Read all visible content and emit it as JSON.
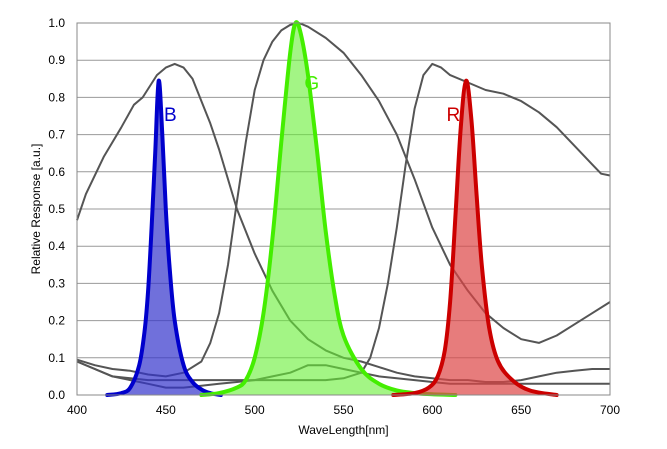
{
  "chart_data": {
    "type": "area",
    "xlabel": "WaveLength[nm]",
    "ylabel": "Relative Response [a.u.]",
    "xlim": [
      400,
      700
    ],
    "ylim": [
      0,
      1.0
    ],
    "x_ticks": [
      "400",
      "450",
      "500",
      "550",
      "600",
      "650",
      "700"
    ],
    "y_ticks": [
      "0.0",
      "0.1",
      "0.2",
      "0.3",
      "0.4",
      "0.5",
      "0.6",
      "0.7",
      "0.8",
      "0.9",
      "1.0"
    ],
    "grid": "horizontal",
    "emission_series": [
      {
        "label": "B",
        "line_color": "#0000cc",
        "fill_color": "#3333cc",
        "fill_opacity": 0.7,
        "label_position": [
          449,
          0.755
        ],
        "points": [
          [
            417,
            0.0
          ],
          [
            425,
            0.005
          ],
          [
            430,
            0.02
          ],
          [
            435,
            0.08
          ],
          [
            438,
            0.17
          ],
          [
            440,
            0.28
          ],
          [
            442,
            0.45
          ],
          [
            444,
            0.65
          ],
          [
            446,
            0.845
          ],
          [
            448,
            0.7
          ],
          [
            450,
            0.5
          ],
          [
            452,
            0.35
          ],
          [
            455,
            0.2
          ],
          [
            460,
            0.08
          ],
          [
            465,
            0.035
          ],
          [
            470,
            0.015
          ],
          [
            475,
            0.005
          ],
          [
            481,
            0.0
          ]
        ]
      },
      {
        "label": "G",
        "line_color": "#44ee00",
        "fill_color": "#66ee33",
        "fill_opacity": 0.6,
        "label_position": [
          528,
          0.84
        ],
        "points": [
          [
            470,
            0.0
          ],
          [
            480,
            0.005
          ],
          [
            490,
            0.02
          ],
          [
            495,
            0.04
          ],
          [
            500,
            0.1
          ],
          [
            505,
            0.22
          ],
          [
            510,
            0.42
          ],
          [
            515,
            0.68
          ],
          [
            520,
            0.92
          ],
          [
            523,
            1.0
          ],
          [
            526,
            0.97
          ],
          [
            530,
            0.86
          ],
          [
            535,
            0.66
          ],
          [
            540,
            0.44
          ],
          [
            545,
            0.27
          ],
          [
            550,
            0.16
          ],
          [
            560,
            0.07
          ],
          [
            570,
            0.03
          ],
          [
            580,
            0.012
          ],
          [
            590,
            0.005
          ],
          [
            600,
            0.002
          ],
          [
            613,
            0.0
          ]
        ]
      },
      {
        "label": "R",
        "line_color": "#cc0000",
        "fill_color": "#dd4444",
        "fill_opacity": 0.7,
        "label_position": [
          608,
          0.755
        ],
        "points": [
          [
            578,
            0.0
          ],
          [
            590,
            0.005
          ],
          [
            598,
            0.02
          ],
          [
            603,
            0.05
          ],
          [
            607,
            0.12
          ],
          [
            610,
            0.25
          ],
          [
            613,
            0.48
          ],
          [
            616,
            0.72
          ],
          [
            619,
            0.845
          ],
          [
            622,
            0.74
          ],
          [
            625,
            0.53
          ],
          [
            628,
            0.34
          ],
          [
            632,
            0.18
          ],
          [
            637,
            0.09
          ],
          [
            645,
            0.04
          ],
          [
            655,
            0.012
          ],
          [
            670,
            0.0
          ]
        ]
      }
    ],
    "filter_series": [
      {
        "color": "#555555",
        "points": [
          [
            400,
            0.47
          ],
          [
            405,
            0.54
          ],
          [
            415,
            0.64
          ],
          [
            425,
            0.72
          ],
          [
            432,
            0.78
          ],
          [
            437,
            0.8
          ],
          [
            445,
            0.86
          ],
          [
            450,
            0.88
          ],
          [
            455,
            0.89
          ],
          [
            460,
            0.88
          ],
          [
            465,
            0.85
          ],
          [
            470,
            0.79
          ],
          [
            475,
            0.73
          ],
          [
            480,
            0.66
          ],
          [
            485,
            0.58
          ],
          [
            490,
            0.5
          ],
          [
            500,
            0.38
          ],
          [
            510,
            0.28
          ],
          [
            520,
            0.2
          ],
          [
            530,
            0.15
          ],
          [
            540,
            0.12
          ],
          [
            550,
            0.1
          ],
          [
            560,
            0.09
          ],
          [
            570,
            0.075
          ],
          [
            580,
            0.06
          ],
          [
            590,
            0.05
          ],
          [
            600,
            0.045
          ],
          [
            610,
            0.04
          ],
          [
            620,
            0.04
          ],
          [
            630,
            0.035
          ],
          [
            640,
            0.035
          ],
          [
            650,
            0.04
          ],
          [
            660,
            0.05
          ],
          [
            670,
            0.06
          ],
          [
            680,
            0.065
          ],
          [
            690,
            0.07
          ],
          [
            700,
            0.07
          ]
        ]
      },
      {
        "color": "#555555",
        "points": [
          [
            400,
            0.09
          ],
          [
            410,
            0.07
          ],
          [
            420,
            0.05
          ],
          [
            430,
            0.04
          ],
          [
            440,
            0.03
          ],
          [
            450,
            0.02
          ],
          [
            460,
            0.02
          ],
          [
            470,
            0.025
          ],
          [
            480,
            0.03
          ],
          [
            490,
            0.035
          ],
          [
            500,
            0.04
          ],
          [
            510,
            0.05
          ],
          [
            520,
            0.06
          ],
          [
            525,
            0.07
          ],
          [
            530,
            0.08
          ],
          [
            540,
            0.08
          ],
          [
            550,
            0.07
          ],
          [
            560,
            0.06
          ],
          [
            570,
            0.05
          ],
          [
            580,
            0.045
          ],
          [
            590,
            0.04
          ],
          [
            600,
            0.035
          ],
          [
            610,
            0.03
          ],
          [
            620,
            0.03
          ],
          [
            630,
            0.03
          ],
          [
            640,
            0.03
          ],
          [
            650,
            0.03
          ],
          [
            660,
            0.03
          ],
          [
            670,
            0.03
          ],
          [
            680,
            0.03
          ],
          [
            690,
            0.03
          ],
          [
            700,
            0.03
          ]
        ]
      },
      {
        "color": "#555555",
        "points": [
          [
            400,
            0.095
          ],
          [
            410,
            0.08
          ],
          [
            420,
            0.07
          ],
          [
            430,
            0.065
          ],
          [
            440,
            0.055
          ],
          [
            450,
            0.05
          ],
          [
            460,
            0.06
          ],
          [
            470,
            0.09
          ],
          [
            475,
            0.14
          ],
          [
            480,
            0.22
          ],
          [
            485,
            0.35
          ],
          [
            490,
            0.52
          ],
          [
            495,
            0.68
          ],
          [
            500,
            0.82
          ],
          [
            505,
            0.9
          ],
          [
            510,
            0.95
          ],
          [
            515,
            0.98
          ],
          [
            520,
            0.995
          ],
          [
            525,
            1.0
          ],
          [
            530,
            0.99
          ],
          [
            540,
            0.96
          ],
          [
            550,
            0.92
          ],
          [
            560,
            0.86
          ],
          [
            570,
            0.79
          ],
          [
            580,
            0.7
          ],
          [
            590,
            0.58
          ],
          [
            600,
            0.45
          ],
          [
            610,
            0.35
          ],
          [
            620,
            0.28
          ],
          [
            630,
            0.22
          ],
          [
            640,
            0.18
          ],
          [
            650,
            0.15
          ],
          [
            660,
            0.14
          ],
          [
            670,
            0.16
          ],
          [
            680,
            0.19
          ],
          [
            690,
            0.22
          ],
          [
            700,
            0.25
          ]
        ]
      },
      {
        "color": "#555555",
        "points": [
          [
            400,
            0.09
          ],
          [
            420,
            0.05
          ],
          [
            440,
            0.04
          ],
          [
            460,
            0.04
          ],
          [
            480,
            0.04
          ],
          [
            500,
            0.04
          ],
          [
            520,
            0.04
          ],
          [
            540,
            0.04
          ],
          [
            550,
            0.045
          ],
          [
            560,
            0.06
          ],
          [
            565,
            0.1
          ],
          [
            570,
            0.18
          ],
          [
            575,
            0.3
          ],
          [
            580,
            0.45
          ],
          [
            585,
            0.62
          ],
          [
            590,
            0.77
          ],
          [
            595,
            0.86
          ],
          [
            600,
            0.89
          ],
          [
            605,
            0.88
          ],
          [
            610,
            0.86
          ],
          [
            620,
            0.84
          ],
          [
            630,
            0.82
          ],
          [
            640,
            0.81
          ],
          [
            650,
            0.79
          ],
          [
            660,
            0.76
          ],
          [
            670,
            0.72
          ],
          [
            680,
            0.67
          ],
          [
            690,
            0.62
          ],
          [
            695,
            0.595
          ],
          [
            700,
            0.59
          ]
        ]
      }
    ]
  }
}
